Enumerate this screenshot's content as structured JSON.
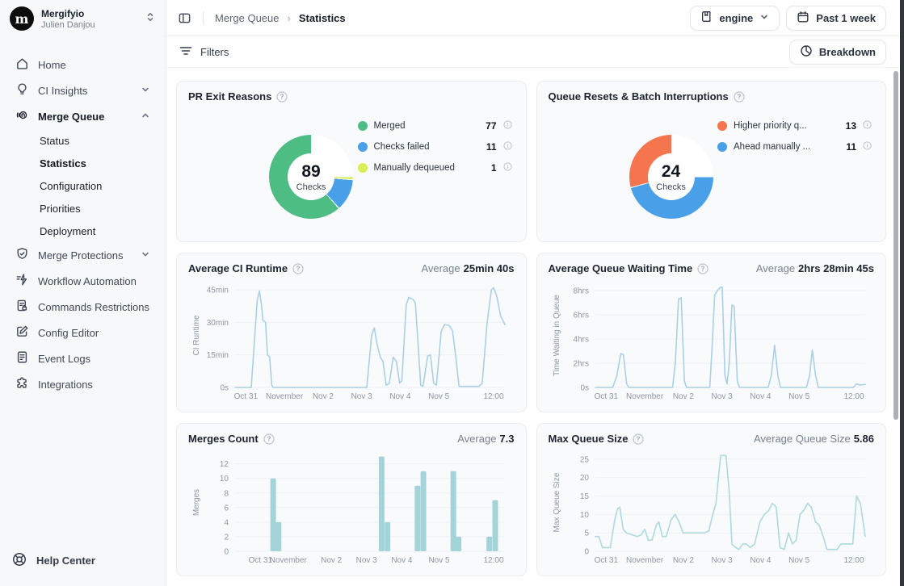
{
  "account": {
    "org": "Mergifyio",
    "user": "Julien Danjou",
    "logo_letter": "m"
  },
  "sidebar": {
    "items": [
      {
        "label": "Home"
      },
      {
        "label": "CI Insights"
      },
      {
        "label": "Merge Queue"
      },
      {
        "label": "Status"
      },
      {
        "label": "Statistics"
      },
      {
        "label": "Configuration"
      },
      {
        "label": "Priorities"
      },
      {
        "label": "Deployment"
      },
      {
        "label": "Merge Protections"
      },
      {
        "label": "Workflow Automation"
      },
      {
        "label": "Commands Restrictions"
      },
      {
        "label": "Config Editor"
      },
      {
        "label": "Event Logs"
      },
      {
        "label": "Integrations"
      }
    ],
    "help": "Help Center"
  },
  "header": {
    "breadcrumb_parent": "Merge Queue",
    "breadcrumb_current": "Statistics",
    "repo_selector": "engine",
    "date_range": "Past 1 week"
  },
  "toolbar": {
    "filters": "Filters",
    "breakdown": "Breakdown"
  },
  "chart_data": [
    {
      "type": "pie",
      "title": "PR Exit Reasons",
      "center_value": "89",
      "center_label": "Checks",
      "legend": [
        {
          "label": "Merged",
          "value": "77",
          "color": "#4dbd83"
        },
        {
          "label": "Checks failed",
          "value": "11",
          "color": "#4aa0e8"
        },
        {
          "label": "Manually dequeued",
          "value": "1",
          "color": "#d9ef55"
        }
      ]
    },
    {
      "type": "pie",
      "title": "Queue Resets & Batch Interruptions",
      "center_value": "24",
      "center_label": "Checks",
      "legend": [
        {
          "label": "Higher priority q...",
          "value": "13",
          "color": "#f5764e"
        },
        {
          "label": "Ahead manually ...",
          "value": "11",
          "color": "#4aa0e8"
        }
      ]
    },
    {
      "type": "line",
      "title": "Average CI Runtime",
      "average_prefix": "Average",
      "average_value": "25min 40s",
      "ylabel": "CI Runtime",
      "color": "#abd0e4",
      "ymax": 48,
      "yticks": [
        {
          "v": 0,
          "label": "0s"
        },
        {
          "v": 15,
          "label": "15min"
        },
        {
          "v": 30,
          "label": "30min"
        },
        {
          "v": 45,
          "label": "45min"
        }
      ],
      "xticks": [
        {
          "pos": 4,
          "label": "Oct 31"
        },
        {
          "pos": 18.3,
          "label": "November"
        },
        {
          "pos": 32.6,
          "label": "Nov 2"
        },
        {
          "pos": 46.9,
          "label": "Nov 3"
        },
        {
          "pos": 61.2,
          "label": "Nov 4"
        },
        {
          "pos": 75.5,
          "label": "Nov 5"
        },
        {
          "pos": 95.8,
          "label": "12:00"
        }
      ],
      "points": [
        [
          0,
          0
        ],
        [
          6,
          0
        ],
        [
          8.2,
          40
        ],
        [
          9,
          44.5
        ],
        [
          9.8,
          38
        ],
        [
          10.3,
          31
        ],
        [
          11.3,
          30
        ],
        [
          12,
          15
        ],
        [
          12.8,
          14
        ],
        [
          13.6,
          1
        ],
        [
          14.2,
          0
        ],
        [
          48.8,
          0
        ],
        [
          50.6,
          24
        ],
        [
          51.6,
          27.5
        ],
        [
          52.6,
          20
        ],
        [
          53.8,
          14
        ],
        [
          54.8,
          12
        ],
        [
          56,
          1
        ],
        [
          57.2,
          2
        ],
        [
          58.6,
          14
        ],
        [
          59.8,
          12
        ],
        [
          61,
          2
        ],
        [
          61.8,
          3
        ],
        [
          63.4,
          38
        ],
        [
          64.4,
          41.5
        ],
        [
          66,
          40.5
        ],
        [
          66.8,
          39
        ],
        [
          67.8,
          20
        ],
        [
          68.8,
          1
        ],
        [
          69.6,
          0.5
        ],
        [
          71.4,
          14.5
        ],
        [
          72.4,
          15
        ],
        [
          73.6,
          2
        ],
        [
          74.6,
          1
        ],
        [
          76.4,
          26
        ],
        [
          77.6,
          29
        ],
        [
          79.4,
          28.5
        ],
        [
          80.6,
          26
        ],
        [
          81.8,
          14
        ],
        [
          83,
          0.5
        ],
        [
          90.4,
          0.5
        ],
        [
          91.6,
          2
        ],
        [
          93.4,
          30
        ],
        [
          95,
          45
        ],
        [
          95.8,
          46
        ],
        [
          97,
          42
        ],
        [
          98.4,
          33
        ],
        [
          100,
          29
        ]
      ]
    },
    {
      "type": "line",
      "title": "Average Queue Waiting Time",
      "average_prefix": "Average",
      "average_value": "2hrs 28min 45s",
      "ylabel": "Time Waiting in Queue",
      "color": "#abd0e4",
      "ymax": 8.6,
      "yticks": [
        {
          "v": 0,
          "label": "0s"
        },
        {
          "v": 2,
          "label": "2hrs"
        },
        {
          "v": 4,
          "label": "4hrs"
        },
        {
          "v": 6,
          "label": "6hrs"
        },
        {
          "v": 8,
          "label": "8hrs"
        }
      ],
      "xticks": [
        {
          "pos": 4,
          "label": "Oct 31"
        },
        {
          "pos": 18.3,
          "label": "November"
        },
        {
          "pos": 32.6,
          "label": "Nov 2"
        },
        {
          "pos": 46.9,
          "label": "Nov 3"
        },
        {
          "pos": 61.2,
          "label": "Nov 4"
        },
        {
          "pos": 75.5,
          "label": "Nov 5"
        },
        {
          "pos": 95.8,
          "label": "12:00"
        }
      ],
      "points": [
        [
          0,
          0
        ],
        [
          6.4,
          0
        ],
        [
          8,
          1
        ],
        [
          9.4,
          2.8
        ],
        [
          10.4,
          2.7
        ],
        [
          11.6,
          0.3
        ],
        [
          12.4,
          0
        ],
        [
          28.6,
          0
        ],
        [
          29.6,
          2
        ],
        [
          30.8,
          7.3
        ],
        [
          31.8,
          7.4
        ],
        [
          33,
          0.5
        ],
        [
          33.8,
          0
        ],
        [
          42.4,
          0
        ],
        [
          43.4,
          4
        ],
        [
          44.2,
          7.6
        ],
        [
          45.2,
          8
        ],
        [
          46.2,
          8.25
        ],
        [
          47,
          8.3
        ],
        [
          48,
          1
        ],
        [
          48.8,
          0.3
        ],
        [
          49.6,
          2
        ],
        [
          50.6,
          6.8
        ],
        [
          51.4,
          6.7
        ],
        [
          52.6,
          0.5
        ],
        [
          53.4,
          0
        ],
        [
          64,
          0
        ],
        [
          65.2,
          1
        ],
        [
          66.4,
          3.5
        ],
        [
          67.6,
          1
        ],
        [
          68.6,
          0
        ],
        [
          78.2,
          0
        ],
        [
          79.4,
          1
        ],
        [
          80.4,
          3.1
        ],
        [
          81.6,
          1
        ],
        [
          82.6,
          0
        ],
        [
          95.6,
          0
        ],
        [
          96.8,
          0.3
        ],
        [
          98,
          0.2
        ],
        [
          100,
          0.25
        ]
      ]
    },
    {
      "type": "bar",
      "title": "Merges Count",
      "average_prefix": "Average",
      "average_value": "7.3",
      "ylabel": "Merges",
      "color": "#a3d4da",
      "ymax": 13.4,
      "yticks": [
        {
          "v": 0,
          "label": "0"
        },
        {
          "v": 2,
          "label": "2"
        },
        {
          "v": 4,
          "label": "4"
        },
        {
          "v": 6,
          "label": "6"
        },
        {
          "v": 8,
          "label": "8"
        },
        {
          "v": 10,
          "label": "10"
        },
        {
          "v": 12,
          "label": "12"
        }
      ],
      "xticks": [
        {
          "pos": 9.4,
          "label": "Oct 31"
        },
        {
          "pos": 19.7,
          "label": "November"
        },
        {
          "pos": 35.7,
          "label": "Nov 2"
        },
        {
          "pos": 48.7,
          "label": "Nov 3"
        },
        {
          "pos": 61.8,
          "label": "Nov 4"
        },
        {
          "pos": 75.6,
          "label": "Nov 5"
        },
        {
          "pos": 95.8,
          "label": "12:00"
        }
      ],
      "points": [
        [
          14.1,
          10
        ],
        [
          16.1,
          4
        ],
        [
          54.3,
          13
        ],
        [
          56.5,
          4
        ],
        [
          67.6,
          9
        ],
        [
          69.8,
          11
        ],
        [
          80.9,
          11
        ],
        [
          82.8,
          2
        ],
        [
          94.2,
          2
        ],
        [
          96.4,
          7
        ]
      ]
    },
    {
      "type": "line",
      "title": "Max Queue Size",
      "average_prefix": "Average Queue Size",
      "average_value": "5.86",
      "ylabel": "Max Queue Size",
      "color": "#aed9dd",
      "ymax": 26.5,
      "yticks": [
        {
          "v": 0,
          "label": "0"
        },
        {
          "v": 5,
          "label": "5"
        },
        {
          "v": 10,
          "label": "10"
        },
        {
          "v": 15,
          "label": "15"
        },
        {
          "v": 20,
          "label": "20"
        },
        {
          "v": 25,
          "label": "25"
        }
      ],
      "xticks": [
        {
          "pos": 4,
          "label": "Oct 31"
        },
        {
          "pos": 18.3,
          "label": "November"
        },
        {
          "pos": 32.6,
          "label": "Nov 2"
        },
        {
          "pos": 46.9,
          "label": "Nov 3"
        },
        {
          "pos": 61.2,
          "label": "Nov 4"
        },
        {
          "pos": 75.5,
          "label": "Nov 5"
        },
        {
          "pos": 95.8,
          "label": "12:00"
        }
      ],
      "points": [
        [
          0,
          4
        ],
        [
          1.3,
          4
        ],
        [
          2.6,
          1
        ],
        [
          5.5,
          1
        ],
        [
          7.3,
          9
        ],
        [
          8.2,
          11.5
        ],
        [
          9,
          12
        ],
        [
          10.3,
          6
        ],
        [
          11.5,
          5
        ],
        [
          13.5,
          4.5
        ],
        [
          15.5,
          4
        ],
        [
          17,
          4.5
        ],
        [
          18.3,
          6
        ],
        [
          19.6,
          3
        ],
        [
          21,
          3
        ],
        [
          22.5,
          7
        ],
        [
          23.5,
          8
        ],
        [
          24.8,
          4
        ],
        [
          26.3,
          4
        ],
        [
          28,
          8.5
        ],
        [
          29.5,
          10
        ],
        [
          31,
          8
        ],
        [
          32.5,
          5
        ],
        [
          36,
          5
        ],
        [
          40.5,
          5
        ],
        [
          42,
          5.5
        ],
        [
          43.5,
          10
        ],
        [
          44.7,
          13
        ],
        [
          45.6,
          20
        ],
        [
          46.4,
          26
        ],
        [
          48.4,
          26
        ],
        [
          49.6,
          16
        ],
        [
          50.6,
          2
        ],
        [
          52,
          1
        ],
        [
          53.2,
          0.5
        ],
        [
          54.6,
          2
        ],
        [
          56,
          2
        ],
        [
          57.4,
          1
        ],
        [
          59,
          2
        ],
        [
          61,
          8
        ],
        [
          62.6,
          10
        ],
        [
          64.2,
          11
        ],
        [
          65.6,
          13
        ],
        [
          67,
          12
        ],
        [
          68.4,
          1
        ],
        [
          70,
          0.5
        ],
        [
          71.6,
          5
        ],
        [
          73,
          2
        ],
        [
          74.4,
          3
        ],
        [
          75.8,
          10
        ],
        [
          77.2,
          11
        ],
        [
          78.6,
          13
        ],
        [
          80,
          12
        ],
        [
          81.6,
          8
        ],
        [
          83,
          7
        ],
        [
          84.4,
          4
        ],
        [
          85.8,
          0.5
        ],
        [
          89.6,
          0.5
        ],
        [
          91,
          2
        ],
        [
          93.6,
          2
        ],
        [
          95.4,
          2
        ],
        [
          96.8,
          15
        ],
        [
          98.2,
          13
        ],
        [
          100,
          4
        ]
      ]
    }
  ]
}
